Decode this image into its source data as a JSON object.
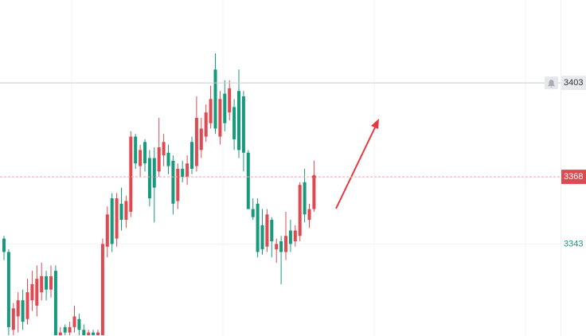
{
  "chart_data": {
    "type": "candlestick",
    "ylim": [
      3308.7,
      3433.9
    ],
    "yticks": [
      3343
    ],
    "alert_line": 3403,
    "last_price": 3368,
    "up_color": "#de4a52",
    "down_color": "#17997b",
    "open": [
      3345,
      3340,
      3311,
      3316,
      3322,
      3315,
      3322,
      3320,
      3325,
      3331,
      3326,
      3333,
      3309,
      3312,
      3310,
      3312,
      3315,
      3311,
      3309,
      3310,
      3309,
      3309,
      3342,
      3360,
      3345,
      3358,
      3352,
      3355,
      3383,
      3372,
      3381,
      3375,
      3375,
      3370,
      3376,
      3377,
      3374,
      3359,
      3371,
      3368,
      3381,
      3372,
      3378,
      3383,
      3388,
      3408,
      3383,
      3399,
      3392,
      3394,
      3400,
      3398,
      3377,
      3356,
      3358,
      3350,
      3342,
      3352,
      3341,
      3344,
      3340,
      3348,
      3344,
      3346,
      3366,
      3352,
      3356
    ],
    "high": [
      3346,
      3341,
      3321,
      3325,
      3326,
      3330,
      3333,
      3335,
      3336,
      3333,
      3335,
      3335,
      3312,
      3313,
      3314,
      3320,
      3317,
      3313,
      3311,
      3311,
      3311,
      3345,
      3357,
      3362,
      3362,
      3364,
      3361,
      3385,
      3384,
      3380,
      3382,
      3378,
      3379,
      3390,
      3384,
      3380,
      3376,
      3373,
      3374,
      3376,
      3383,
      3398,
      3390,
      3395,
      3402,
      3414,
      3400,
      3404,
      3404,
      3397,
      3408,
      3400,
      3378,
      3360,
      3360,
      3356,
      3356,
      3353,
      3345,
      3346,
      3355,
      3352,
      3350,
      3366,
      3371,
      3358,
      3374
    ],
    "low": [
      3337,
      3309,
      3309,
      3310,
      3311,
      3313,
      3318,
      3316,
      3322,
      3322,
      3323,
      3309,
      3309,
      3309,
      3309,
      3310,
      3309,
      3309,
      3309,
      3309,
      3309,
      3309,
      3338,
      3340,
      3342,
      3348,
      3349,
      3353,
      3371,
      3368,
      3370,
      3357,
      3351,
      3368,
      3372,
      3369,
      3354,
      3356,
      3366,
      3365,
      3369,
      3370,
      3375,
      3381,
      3386,
      3384,
      3380,
      3385,
      3389,
      3378,
      3375,
      3370,
      3356,
      3352,
      3338,
      3339,
      3340,
      3338,
      3336,
      3328,
      3337,
      3340,
      3342,
      3344,
      3351,
      3349,
      3355
    ],
    "close": [
      3340,
      3312,
      3319,
      3322,
      3314,
      3325,
      3328,
      3330,
      3331,
      3326,
      3331,
      3309,
      3310,
      3310,
      3312,
      3316,
      3311,
      3309,
      3310,
      3309,
      3310,
      3343,
      3354,
      3343,
      3360,
      3352,
      3359,
      3383,
      3373,
      3378,
      3373,
      3360,
      3364,
      3379,
      3381,
      3372,
      3358,
      3371,
      3368,
      3373,
      3371,
      3390,
      3386,
      3392,
      3397,
      3386,
      3397,
      3388,
      3401,
      3382,
      3378,
      3377,
      3356,
      3353,
      3340,
      3341,
      3354,
      3344,
      3343,
      3340,
      3346,
      3343,
      3348,
      3365,
      3354,
      3356,
      3368
    ]
  }
}
